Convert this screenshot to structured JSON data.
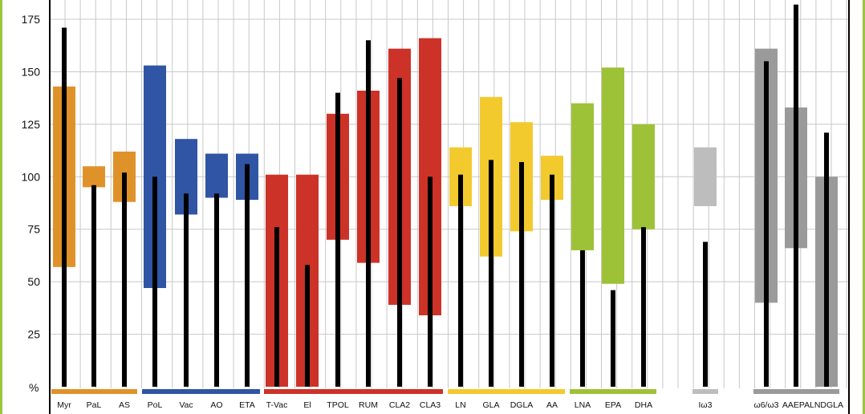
{
  "chart_data": {
    "type": "bar",
    "title": "",
    "xlabel": "",
    "ylabel": "%",
    "ylim": [
      0,
      180
    ],
    "yticks": [
      25,
      50,
      75,
      100,
      125,
      150,
      175
    ],
    "grid": true,
    "categories": [
      {
        "label": "Myr",
        "group": "orange",
        "range": [
          57,
          143
        ],
        "value": 171
      },
      {
        "label": "PaL",
        "group": "orange",
        "range": [
          95,
          105
        ],
        "value": 96
      },
      {
        "label": "AS",
        "group": "orange",
        "range": [
          88,
          112
        ],
        "value": 102
      },
      {
        "label": "PoL",
        "group": "blue",
        "range": [
          47,
          153
        ],
        "value": 100
      },
      {
        "label": "Vac",
        "group": "blue",
        "range": [
          82,
          118
        ],
        "value": 92
      },
      {
        "label": "AO",
        "group": "blue",
        "range": [
          90,
          111
        ],
        "value": 92
      },
      {
        "label": "ETA",
        "group": "blue",
        "range": [
          89,
          111
        ],
        "value": 106
      },
      {
        "label": "T-Vac",
        "group": "red",
        "range": [
          0,
          101
        ],
        "value": 76
      },
      {
        "label": "El",
        "group": "red",
        "range": [
          0,
          101
        ],
        "value": 58
      },
      {
        "label": "TPOL",
        "group": "red",
        "range": [
          70,
          130
        ],
        "value": 140
      },
      {
        "label": "RUM",
        "group": "red",
        "range": [
          59,
          141
        ],
        "value": 165
      },
      {
        "label": "CLA2",
        "group": "red",
        "range": [
          39,
          161
        ],
        "value": 147
      },
      {
        "label": "CLA3",
        "group": "red",
        "range": [
          34,
          166
        ],
        "value": 100
      },
      {
        "label": "LN",
        "group": "yellow",
        "range": [
          86,
          114
        ],
        "value": 101
      },
      {
        "label": "GLA",
        "group": "yellow",
        "range": [
          62,
          138
        ],
        "value": 108
      },
      {
        "label": "DGLA",
        "group": "yellow",
        "range": [
          74,
          126
        ],
        "value": 107
      },
      {
        "label": "AA",
        "group": "yellow",
        "range": [
          89,
          110
        ],
        "value": 101
      },
      {
        "label": "LNA",
        "group": "green",
        "range": [
          65,
          135
        ],
        "value": 65
      },
      {
        "label": "EPA",
        "group": "green",
        "range": [
          49,
          152
        ],
        "value": 46
      },
      {
        "label": "DHA",
        "group": "green",
        "range": [
          75,
          125
        ],
        "value": 76
      },
      {
        "label": "Iω3",
        "group": "lightgray",
        "range": [
          86,
          114
        ],
        "value": 69
      },
      {
        "label": "ω6/ω3",
        "group": "gray",
        "range": [
          40,
          161
        ],
        "value": 155
      },
      {
        "label": "AAEPA",
        "group": "gray",
        "range": [
          66,
          133
        ],
        "value": 182
      },
      {
        "label": "LNDGLA",
        "group": "gray",
        "range": [
          0,
          100
        ],
        "value": 121
      }
    ],
    "groups": [
      {
        "name": "orange",
        "members": [
          "Myr",
          "PaL",
          "AS"
        ]
      },
      {
        "name": "blue",
        "members": [
          "PoL",
          "Vac",
          "AO",
          "ETA"
        ]
      },
      {
        "name": "red",
        "members": [
          "T-Vac",
          "El",
          "TPOL",
          "RUM",
          "CLA2",
          "CLA3"
        ]
      },
      {
        "name": "yellow",
        "members": [
          "LN",
          "GLA",
          "DGLA",
          "AA"
        ]
      },
      {
        "name": "green",
        "members": [
          "LNA",
          "EPA",
          "DHA"
        ]
      },
      {
        "name": "lightgray",
        "members": [
          "Iω3"
        ]
      },
      {
        "name": "gray",
        "members": [
          "ω6/ω3",
          "AAEPA",
          "LNDGLA"
        ]
      }
    ]
  },
  "colors": {
    "orange": "#E0922A",
    "blue": "#2F55A4",
    "red": "#CC3228",
    "yellow": "#F2CA2E",
    "green": "#9EC237",
    "lightgray": "#BDBDBD",
    "gray": "#9A9A9A",
    "value_line": "#000000",
    "grid": "#C8C8C8",
    "frame_accent": "#9BC53D"
  }
}
